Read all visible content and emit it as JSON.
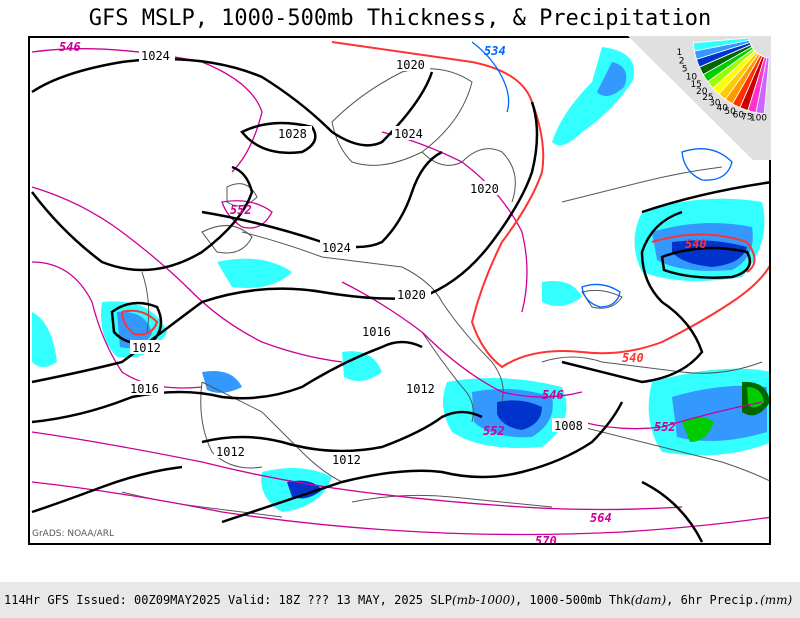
{
  "title": "GFS MSLP, 1000-500mb Thickness, & Precipitation",
  "credit": "GrADS: NOAA/ARL",
  "footer": {
    "prefix": "114Hr GFS Issued: 00Z09MAY2025 Valid: 18Z ??? 13 MAY, 2025  SLP ",
    "slp_units": "(mb-1000)",
    "mid": ", 1000-500mb Thk ",
    "thk_units": "(dam)",
    "mid2": ", 6hr Precip.",
    "precip_units": "(mm)"
  },
  "legend": {
    "values": [
      "100",
      "75",
      "60",
      "50",
      "40",
      "30",
      "25",
      "20",
      "15",
      "10",
      "5",
      "2",
      "1"
    ],
    "colors": [
      "#cc66ff",
      "#ff33cc",
      "#cc0000",
      "#ff3300",
      "#ff9900",
      "#ffcc00",
      "#ffff00",
      "#99ff00",
      "#00cc00",
      "#006600",
      "#0033cc",
      "#3399ff",
      "#33ffff"
    ]
  },
  "colors": {
    "isobar": "#000000",
    "thickness_low": "#0066ff",
    "thickness_540": "#ff3333",
    "thickness_high": "#cc0099",
    "coastline": "#555555"
  },
  "isobar_labels": [
    "1024",
    "1020",
    "1028",
    "1024",
    "1020",
    "1024",
    "1020",
    "1016",
    "1012",
    "1016",
    "1012",
    "1012",
    "1012",
    "1008"
  ],
  "thickness_labels": [
    {
      "text": "546",
      "color": "#cc0099"
    },
    {
      "text": "534",
      "color": "#0066ff"
    },
    {
      "text": "552",
      "color": "#cc0099"
    },
    {
      "text": "540",
      "color": "#ff3333"
    },
    {
      "text": "540",
      "color": "#ff3333"
    },
    {
      "text": "546",
      "color": "#cc0099"
    },
    {
      "text": "552",
      "color": "#cc0099"
    },
    {
      "text": "552",
      "color": "#cc0099"
    },
    {
      "text": "564",
      "color": "#cc0099"
    },
    {
      "text": "570",
      "color": "#cc0099"
    }
  ]
}
